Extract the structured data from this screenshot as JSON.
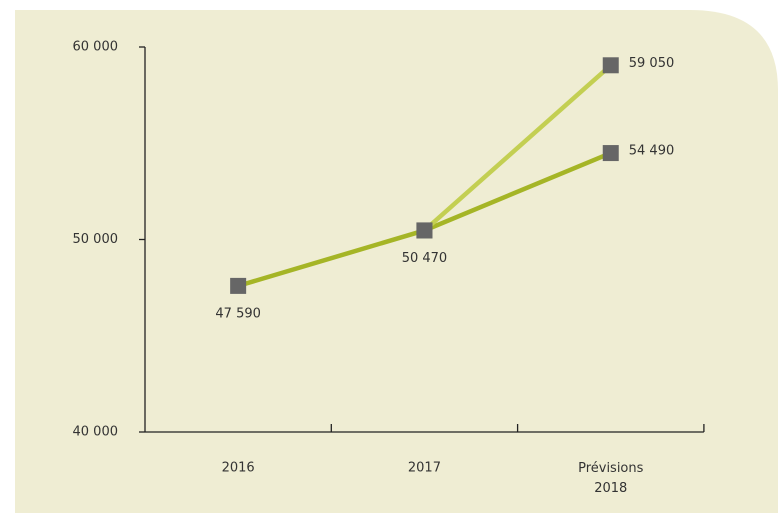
{
  "chart_data": {
    "type": "line",
    "categories": [
      "2016",
      "2017",
      "Prévisions 2018"
    ],
    "series": [
      {
        "color": "#a5b526",
        "values": [
          47590,
          50470,
          54490
        ],
        "value_labels": [
          "47 590",
          "50 470",
          "54 490"
        ]
      },
      {
        "color": "#c3cf52",
        "values": [
          null,
          50470,
          59050
        ],
        "value_labels": [
          null,
          null,
          "59 050"
        ]
      }
    ],
    "marker_color": "#666666",
    "ylim": [
      40000,
      60000
    ],
    "yticks": [
      {
        "value": 40000,
        "label": "40 000"
      },
      {
        "value": 50000,
        "label": "50 000"
      },
      {
        "value": 60000,
        "label": "60 000"
      }
    ]
  }
}
